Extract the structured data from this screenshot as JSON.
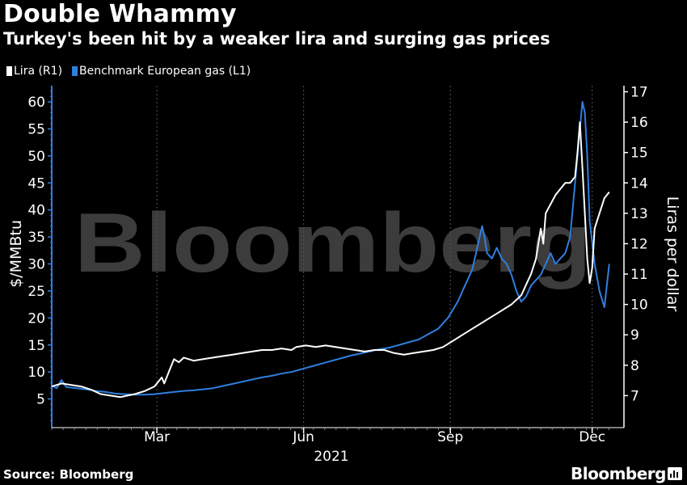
{
  "title": "Double Whammy",
  "subtitle": "Turkey's been hit by a weaker lira and surging gas prices",
  "source": "Source: Bloomberg",
  "brand": "Bloomberg",
  "watermark": "Bloomberg",
  "colors": {
    "background": "#000000",
    "lira": "#ffffff",
    "gas": "#2f7fdf",
    "grid": "#444444",
    "watermark": "#3c3c3c"
  },
  "chart_data": {
    "type": "line",
    "x_axis": {
      "label": "",
      "ticks": [
        "Mar",
        "Jun",
        "Sep",
        "Dec"
      ],
      "year_label": "2021",
      "x_range_month": [
        0,
        11.4
      ]
    },
    "left_axis": {
      "label": "$/MMBtu",
      "range": [
        0,
        63
      ],
      "ticks": [
        5,
        10,
        15,
        20,
        25,
        30,
        35,
        40,
        45,
        50,
        55,
        60
      ]
    },
    "right_axis": {
      "label": "Liras per dollar",
      "range": [
        6,
        17.2
      ],
      "ticks": [
        7,
        8,
        9,
        10,
        11,
        12,
        13,
        14,
        15,
        16,
        17
      ]
    },
    "legend": [
      {
        "label": "Lira (R1)",
        "color": "#ffffff"
      },
      {
        "label": "Benchmark European gas (L1)",
        "color": "#2f7fdf"
      }
    ],
    "series": [
      {
        "name": "Lira (R1)",
        "axis": "right",
        "points": [
          [
            0,
            7.3
          ],
          [
            0.2,
            7.4
          ],
          [
            0.4,
            7.35
          ],
          [
            0.6,
            7.3
          ],
          [
            0.8,
            7.2
          ],
          [
            1.0,
            7.05
          ],
          [
            1.2,
            7.0
          ],
          [
            1.4,
            6.95
          ],
          [
            1.55,
            7.0
          ],
          [
            1.7,
            7.05
          ],
          [
            1.9,
            7.15
          ],
          [
            2.1,
            7.3
          ],
          [
            2.25,
            7.6
          ],
          [
            2.3,
            7.4
          ],
          [
            2.4,
            7.8
          ],
          [
            2.5,
            8.2
          ],
          [
            2.6,
            8.1
          ],
          [
            2.7,
            8.25
          ],
          [
            2.9,
            8.15
          ],
          [
            3.1,
            8.2
          ],
          [
            3.3,
            8.25
          ],
          [
            3.5,
            8.3
          ],
          [
            3.7,
            8.35
          ],
          [
            3.9,
            8.4
          ],
          [
            4.1,
            8.45
          ],
          [
            4.3,
            8.5
          ],
          [
            4.5,
            8.5
          ],
          [
            4.7,
            8.55
          ],
          [
            4.9,
            8.5
          ],
          [
            5.0,
            8.6
          ],
          [
            5.2,
            8.65
          ],
          [
            5.4,
            8.6
          ],
          [
            5.6,
            8.65
          ],
          [
            5.8,
            8.6
          ],
          [
            6.0,
            8.55
          ],
          [
            6.2,
            8.5
          ],
          [
            6.4,
            8.45
          ],
          [
            6.6,
            8.5
          ],
          [
            6.8,
            8.5
          ],
          [
            7.0,
            8.4
          ],
          [
            7.2,
            8.35
          ],
          [
            7.4,
            8.4
          ],
          [
            7.6,
            8.45
          ],
          [
            7.8,
            8.5
          ],
          [
            8.0,
            8.6
          ],
          [
            8.2,
            8.8
          ],
          [
            8.4,
            9.0
          ],
          [
            8.6,
            9.2
          ],
          [
            8.8,
            9.4
          ],
          [
            9.0,
            9.6
          ],
          [
            9.2,
            9.8
          ],
          [
            9.4,
            10.0
          ],
          [
            9.6,
            10.3
          ],
          [
            9.8,
            11.0
          ],
          [
            9.9,
            11.5
          ],
          [
            10.0,
            12.5
          ],
          [
            10.05,
            12.0
          ],
          [
            10.1,
            13.0
          ],
          [
            10.2,
            13.3
          ],
          [
            10.3,
            13.6
          ],
          [
            10.4,
            13.8
          ],
          [
            10.5,
            14.0
          ],
          [
            10.6,
            14.0
          ],
          [
            10.7,
            14.2
          ],
          [
            10.75,
            15.0
          ],
          [
            10.8,
            16.0
          ],
          [
            10.85,
            14.5
          ],
          [
            10.9,
            13.0
          ],
          [
            10.95,
            11.5
          ],
          [
            11.0,
            10.7
          ],
          [
            11.05,
            11.2
          ],
          [
            11.1,
            12.5
          ],
          [
            11.2,
            13.0
          ],
          [
            11.3,
            13.5
          ],
          [
            11.4,
            13.7
          ]
        ]
      },
      {
        "name": "Benchmark European gas (L1)",
        "axis": "left",
        "points": [
          [
            0,
            7.5
          ],
          [
            0.1,
            7.0
          ],
          [
            0.2,
            8.5
          ],
          [
            0.3,
            7.2
          ],
          [
            0.5,
            7.0
          ],
          [
            0.7,
            6.8
          ],
          [
            0.9,
            6.5
          ],
          [
            1.1,
            6.3
          ],
          [
            1.3,
            6.0
          ],
          [
            1.5,
            5.9
          ],
          [
            1.7,
            5.8
          ],
          [
            1.9,
            5.8
          ],
          [
            2.1,
            5.9
          ],
          [
            2.3,
            6.1
          ],
          [
            2.5,
            6.3
          ],
          [
            2.7,
            6.5
          ],
          [
            2.9,
            6.6
          ],
          [
            3.1,
            6.8
          ],
          [
            3.3,
            7.0
          ],
          [
            3.5,
            7.4
          ],
          [
            3.7,
            7.8
          ],
          [
            3.9,
            8.2
          ],
          [
            4.1,
            8.6
          ],
          [
            4.3,
            9.0
          ],
          [
            4.5,
            9.3
          ],
          [
            4.7,
            9.7
          ],
          [
            4.9,
            10.0
          ],
          [
            5.1,
            10.5
          ],
          [
            5.3,
            11.0
          ],
          [
            5.5,
            11.5
          ],
          [
            5.7,
            12.0
          ],
          [
            5.9,
            12.5
          ],
          [
            6.1,
            13.0
          ],
          [
            6.3,
            13.4
          ],
          [
            6.5,
            13.8
          ],
          [
            6.7,
            14.2
          ],
          [
            6.9,
            14.5
          ],
          [
            7.1,
            15.0
          ],
          [
            7.3,
            15.5
          ],
          [
            7.5,
            16.0
          ],
          [
            7.7,
            17.0
          ],
          [
            7.9,
            18.0
          ],
          [
            8.1,
            20.0
          ],
          [
            8.3,
            23.0
          ],
          [
            8.4,
            25.0
          ],
          [
            8.5,
            27.0
          ],
          [
            8.6,
            29.0
          ],
          [
            8.7,
            33.0
          ],
          [
            8.8,
            37.0
          ],
          [
            8.85,
            35.0
          ],
          [
            8.9,
            32.0
          ],
          [
            9.0,
            31.0
          ],
          [
            9.1,
            33.0
          ],
          [
            9.2,
            31.0
          ],
          [
            9.3,
            30.0
          ],
          [
            9.4,
            28.0
          ],
          [
            9.5,
            25.0
          ],
          [
            9.6,
            23.0
          ],
          [
            9.7,
            24.0
          ],
          [
            9.8,
            26.0
          ],
          [
            9.9,
            27.0
          ],
          [
            10.0,
            28.0
          ],
          [
            10.1,
            30.0
          ],
          [
            10.2,
            32.0
          ],
          [
            10.3,
            30.0
          ],
          [
            10.4,
            31.0
          ],
          [
            10.5,
            32.0
          ],
          [
            10.6,
            35.0
          ],
          [
            10.7,
            45.0
          ],
          [
            10.8,
            55.0
          ],
          [
            10.85,
            60.0
          ],
          [
            10.9,
            58.0
          ],
          [
            10.95,
            50.0
          ],
          [
            11.0,
            38.0
          ],
          [
            11.1,
            30.0
          ],
          [
            11.2,
            25.0
          ],
          [
            11.3,
            22.0
          ],
          [
            11.4,
            30.0
          ]
        ]
      }
    ]
  }
}
